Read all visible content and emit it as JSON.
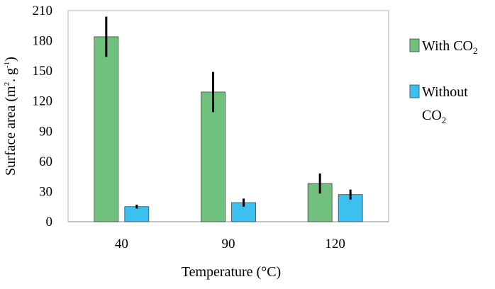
{
  "chart_data": {
    "type": "bar",
    "title": "",
    "xlabel": "Temperature (°C)",
    "ylabel": {
      "text": "Surface area (m",
      "sup1": "2",
      "mid": ". g",
      "sup2": "-1",
      "end": ")"
    },
    "categories": [
      "40",
      "90",
      "120"
    ],
    "ylim": [
      0,
      210
    ],
    "yticks": [
      "0",
      "30",
      "60",
      "90",
      "120",
      "150",
      "180",
      "210"
    ],
    "grid": false,
    "legend_position": "right",
    "series": [
      {
        "name": "With CO2",
        "legend_lines": [
          {
            "text": "With CO",
            "sub": "2"
          }
        ],
        "color": "#70c17e",
        "values": [
          184,
          129,
          38
        ],
        "errors": [
          20,
          20,
          10
        ]
      },
      {
        "name": "Without CO2",
        "legend_lines": [
          {
            "text": "Without",
            "sub": ""
          },
          {
            "text": "CO",
            "sub": "2"
          }
        ],
        "color": "#3cc0f0",
        "values": [
          15,
          19,
          27
        ],
        "errors": [
          2,
          4,
          5
        ]
      }
    ]
  }
}
